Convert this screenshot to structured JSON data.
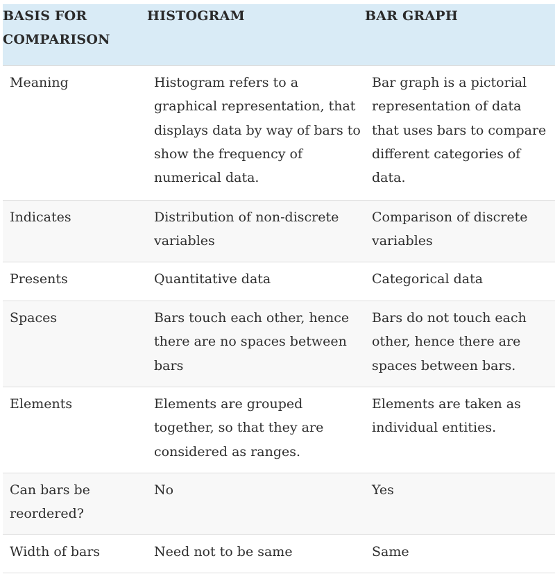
{
  "header": {
    "col1": "BASIS FOR COMPARISON",
    "col1_line1": "BASIS FOR",
    "col1_line2": "COMPARISON",
    "col2": "HISTOGRAM",
    "col3": "BAR GRAPH"
  },
  "rows": [
    {
      "basis": "Meaning",
      "histogram": "Histogram refers to a graphical representation, that displays data by way of bars to show the frequency of numerical data.",
      "bar_graph": "Bar graph is a pictorial representation of data that uses bars to compare different categories of data."
    },
    {
      "basis": "Indicates",
      "histogram": "Distribution of non-discrete variables",
      "bar_graph": "Comparison of discrete variables"
    },
    {
      "basis": "Presents",
      "histogram": "Quantitative data",
      "bar_graph": "Categorical data"
    },
    {
      "basis": "Spaces",
      "histogram": "Bars touch each other, hence there are no spaces between bars",
      "bar_graph": "Bars do not touch each other, hence there are spaces between bars."
    },
    {
      "basis": "Elements",
      "histogram": "Elements are grouped together, so that they are considered as ranges.",
      "bar_graph": "Elements are taken as individual entities."
    },
    {
      "basis": "Can bars be reordered?",
      "histogram": "No",
      "bar_graph": "Yes"
    },
    {
      "basis": "Width of bars",
      "histogram": "Need not to be same",
      "bar_graph": "Same"
    }
  ]
}
